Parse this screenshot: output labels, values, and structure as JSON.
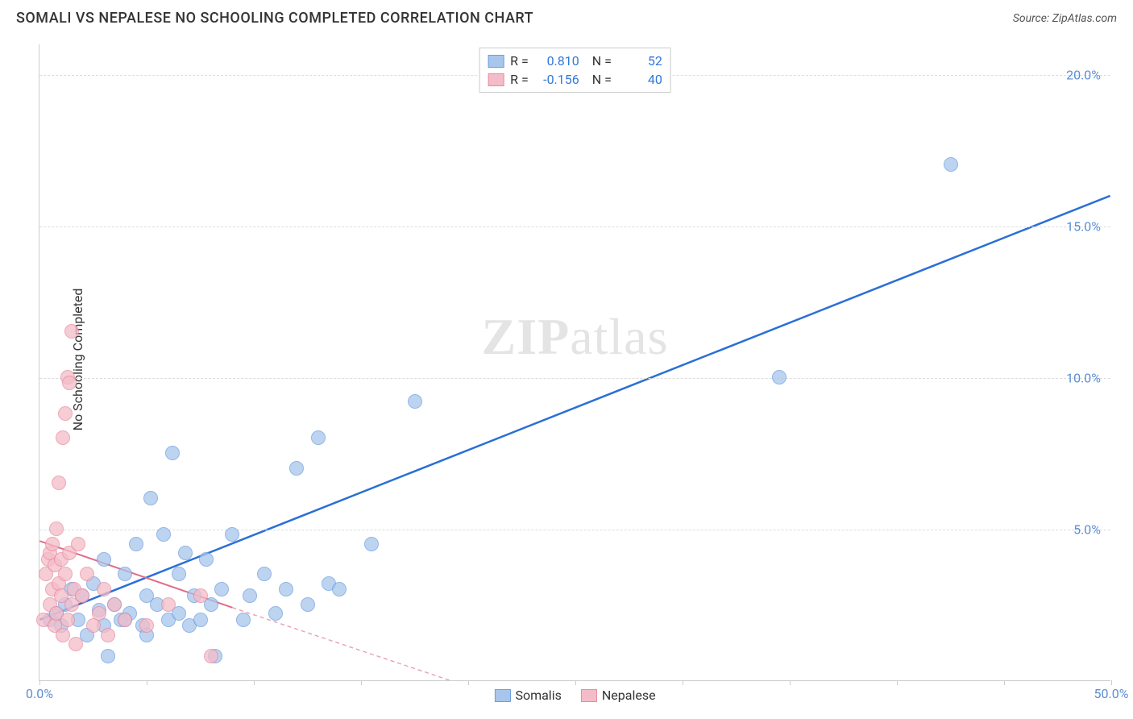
{
  "header": {
    "title": "SOMALI VS NEPALESE NO SCHOOLING COMPLETED CORRELATION CHART",
    "source": "Source: ZipAtlas.com"
  },
  "chart": {
    "type": "scatter",
    "ylabel": "No Schooling Completed",
    "xlim": [
      0,
      50
    ],
    "ylim": [
      0,
      21
    ],
    "xtick_positions": [
      0,
      5,
      10,
      15,
      20,
      25,
      30,
      35,
      40,
      45,
      50
    ],
    "xtick_labels": {
      "0": "0.0%",
      "50": "50.0%"
    },
    "ytick_positions": [
      5,
      10,
      15,
      20
    ],
    "ytick_labels": {
      "5": "5.0%",
      "10": "10.0%",
      "15": "15.0%",
      "20": "20.0%"
    },
    "background_color": "#ffffff",
    "grid_color": "#dddddd",
    "axis_color": "#cccccc",
    "tick_label_color": "#5b8fd6",
    "point_radius": 9,
    "series": [
      {
        "name": "Somalis",
        "fill_color": "#a8c6ec",
        "stroke_color": "#6d9de0",
        "opacity": 0.75,
        "R": "0.810",
        "N": "52",
        "trend": {
          "x1": 0,
          "y1": 2.0,
          "x2": 50,
          "y2": 16.0,
          "color": "#2a6fd6",
          "width": 2.5,
          "dash": "none"
        },
        "points": [
          [
            0.5,
            2.0
          ],
          [
            0.8,
            2.2
          ],
          [
            1.0,
            1.8
          ],
          [
            1.2,
            2.5
          ],
          [
            1.5,
            3.0
          ],
          [
            1.8,
            2.0
          ],
          [
            2.0,
            2.8
          ],
          [
            2.2,
            1.5
          ],
          [
            2.5,
            3.2
          ],
          [
            2.8,
            2.3
          ],
          [
            3.0,
            1.8
          ],
          [
            3.2,
            0.8
          ],
          [
            3.5,
            2.5
          ],
          [
            3.8,
            2.0
          ],
          [
            4.0,
            3.5
          ],
          [
            4.2,
            2.2
          ],
          [
            4.5,
            4.5
          ],
          [
            4.8,
            1.8
          ],
          [
            5.0,
            2.8
          ],
          [
            5.2,
            6.0
          ],
          [
            5.5,
            2.5
          ],
          [
            5.8,
            4.8
          ],
          [
            6.0,
            2.0
          ],
          [
            6.2,
            7.5
          ],
          [
            6.5,
            2.2
          ],
          [
            6.8,
            4.2
          ],
          [
            7.0,
            1.8
          ],
          [
            7.2,
            2.8
          ],
          [
            7.8,
            4.0
          ],
          [
            8.0,
            2.5
          ],
          [
            8.2,
            0.8
          ],
          [
            8.5,
            3.0
          ],
          [
            9.0,
            4.8
          ],
          [
            9.5,
            2.0
          ],
          [
            9.8,
            2.8
          ],
          [
            10.5,
            3.5
          ],
          [
            11.0,
            2.2
          ],
          [
            11.5,
            3.0
          ],
          [
            12.0,
            7.0
          ],
          [
            12.5,
            2.5
          ],
          [
            13.0,
            8.0
          ],
          [
            13.5,
            3.2
          ],
          [
            14.0,
            3.0
          ],
          [
            15.5,
            4.5
          ],
          [
            17.5,
            9.2
          ],
          [
            34.5,
            10.0
          ],
          [
            42.5,
            17.0
          ],
          [
            4.0,
            2.0
          ],
          [
            5.0,
            1.5
          ],
          [
            6.5,
            3.5
          ],
          [
            7.5,
            2.0
          ],
          [
            3.0,
            4.0
          ]
        ]
      },
      {
        "name": "Nepalese",
        "fill_color": "#f4bcc8",
        "stroke_color": "#e88ba0",
        "opacity": 0.75,
        "R": "-0.156",
        "N": "40",
        "trend_solid": {
          "x1": 0,
          "y1": 4.6,
          "x2": 9,
          "y2": 2.4,
          "color": "#e36b88",
          "width": 2,
          "dash": "none"
        },
        "trend_dash": {
          "x1": 9,
          "y1": 2.4,
          "x2": 20,
          "y2": -0.2,
          "color": "#e8a5b5",
          "width": 1.5,
          "dash": "5,4"
        },
        "points": [
          [
            0.2,
            2.0
          ],
          [
            0.3,
            3.5
          ],
          [
            0.4,
            4.0
          ],
          [
            0.5,
            2.5
          ],
          [
            0.5,
            4.2
          ],
          [
            0.6,
            3.0
          ],
          [
            0.6,
            4.5
          ],
          [
            0.7,
            1.8
          ],
          [
            0.7,
            3.8
          ],
          [
            0.8,
            2.2
          ],
          [
            0.8,
            5.0
          ],
          [
            0.9,
            3.2
          ],
          [
            0.9,
            6.5
          ],
          [
            1.0,
            2.8
          ],
          [
            1.0,
            4.0
          ],
          [
            1.1,
            1.5
          ],
          [
            1.1,
            8.0
          ],
          [
            1.2,
            3.5
          ],
          [
            1.2,
            8.8
          ],
          [
            1.3,
            2.0
          ],
          [
            1.3,
            10.0
          ],
          [
            1.4,
            4.2
          ],
          [
            1.4,
            9.8
          ],
          [
            1.5,
            2.5
          ],
          [
            1.5,
            11.5
          ],
          [
            1.6,
            3.0
          ],
          [
            1.7,
            1.2
          ],
          [
            1.8,
            4.5
          ],
          [
            2.0,
            2.8
          ],
          [
            2.2,
            3.5
          ],
          [
            2.5,
            1.8
          ],
          [
            2.8,
            2.2
          ],
          [
            3.0,
            3.0
          ],
          [
            3.2,
            1.5
          ],
          [
            3.5,
            2.5
          ],
          [
            4.0,
            2.0
          ],
          [
            5.0,
            1.8
          ],
          [
            6.0,
            2.5
          ],
          [
            7.5,
            2.8
          ],
          [
            8.0,
            0.8
          ]
        ]
      }
    ],
    "legend_bottom": [
      {
        "label": "Somalis",
        "fill": "#a8c6ec",
        "stroke": "#6d9de0"
      },
      {
        "label": "Nepalese",
        "fill": "#f4bcc8",
        "stroke": "#e88ba0"
      }
    ],
    "watermark": {
      "part1": "ZIP",
      "part2": "atlas"
    }
  }
}
